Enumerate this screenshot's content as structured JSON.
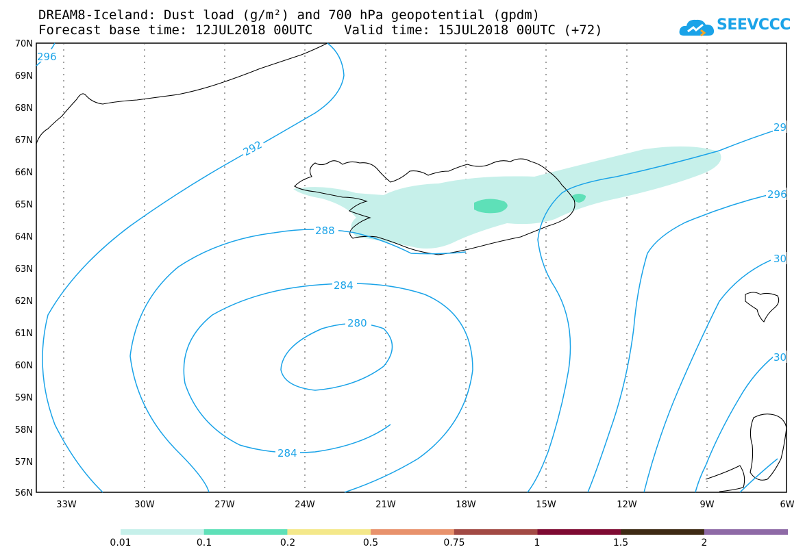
{
  "title": {
    "line1": "DREAM8-Iceland: Dust load (g/m²) and 700 hPa geopotential (gpdm)",
    "line2": "Forecast base time: 12JUL2018 00UTC    Valid time: 15JUL2018 00UTC (+72)"
  },
  "logo": {
    "text": "SEEVCCC",
    "icon": "cloud-icon",
    "color": "#1aa3e8"
  },
  "axes": {
    "lat_labels": [
      "70N",
      "69N",
      "68N",
      "67N",
      "66N",
      "65N",
      "64N",
      "63N",
      "62N",
      "61N",
      "60N",
      "59N",
      "58N",
      "57N",
      "56N"
    ],
    "lon_labels": [
      "33W",
      "30W",
      "27W",
      "24W",
      "21W",
      "18W",
      "15W",
      "12W",
      "9W",
      "6W"
    ]
  },
  "contours": {
    "color": "#1aa3e8",
    "labels": [
      "296",
      "292",
      "288",
      "284",
      "280",
      "284",
      "296",
      "29",
      "30",
      "30"
    ]
  },
  "colorbar": {
    "labels": [
      "0.01",
      "0.1",
      "0.2",
      "0.5",
      "0.75",
      "1",
      "1.5",
      "2"
    ],
    "colors": [
      "#c6f0ea",
      "#5ee0b8",
      "#f4e88a",
      "#e8926c",
      "#a24a44",
      "#7e0a32",
      "#3e2a14",
      "#8e6aa6"
    ]
  }
}
